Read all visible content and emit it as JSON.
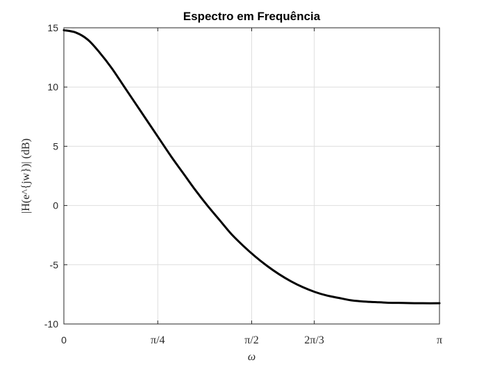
{
  "chart_data": {
    "type": "line",
    "title": "Espectro em Frequência",
    "xlabel": "ω",
    "ylabel": "|H(e^{jw})| (dB)",
    "xlim": [
      0,
      3.14159
    ],
    "ylim": [
      -10,
      15
    ],
    "grid": true,
    "legend": "none",
    "x_ticks": [
      {
        "value": 0,
        "label": "0"
      },
      {
        "value": 0.7854,
        "label": "π/4"
      },
      {
        "value": 1.5708,
        "label": "π/2"
      },
      {
        "value": 2.0944,
        "label": "2π/3"
      },
      {
        "value": 3.14159,
        "label": "π"
      }
    ],
    "y_ticks": [
      {
        "value": 15,
        "label": "15"
      },
      {
        "value": 10,
        "label": "10"
      },
      {
        "value": 5,
        "label": "5"
      },
      {
        "value": 0,
        "label": "0"
      },
      {
        "value": -5,
        "label": "-5"
      },
      {
        "value": -10,
        "label": "-10"
      }
    ],
    "series": [
      {
        "color": "#000000",
        "x": [
          0,
          0.1,
          0.2,
          0.3,
          0.4,
          0.5,
          0.6,
          0.7,
          0.8,
          0.9,
          1.0,
          1.1,
          1.2,
          1.3,
          1.4,
          1.5,
          1.6,
          1.7,
          1.8,
          1.9,
          2.0,
          2.1,
          2.2,
          2.3,
          2.4,
          2.5,
          2.6,
          2.7,
          2.8,
          2.9,
          3.0,
          3.1416
        ],
        "values": [
          14.8,
          14.6,
          14.0,
          12.9,
          11.6,
          10.1,
          8.6,
          7.1,
          5.6,
          4.1,
          2.7,
          1.3,
          0.0,
          -1.2,
          -2.4,
          -3.4,
          -4.3,
          -5.1,
          -5.8,
          -6.4,
          -6.9,
          -7.3,
          -7.6,
          -7.8,
          -8.0,
          -8.1,
          -8.15,
          -8.2,
          -8.22,
          -8.24,
          -8.25,
          -8.25
        ]
      }
    ]
  }
}
